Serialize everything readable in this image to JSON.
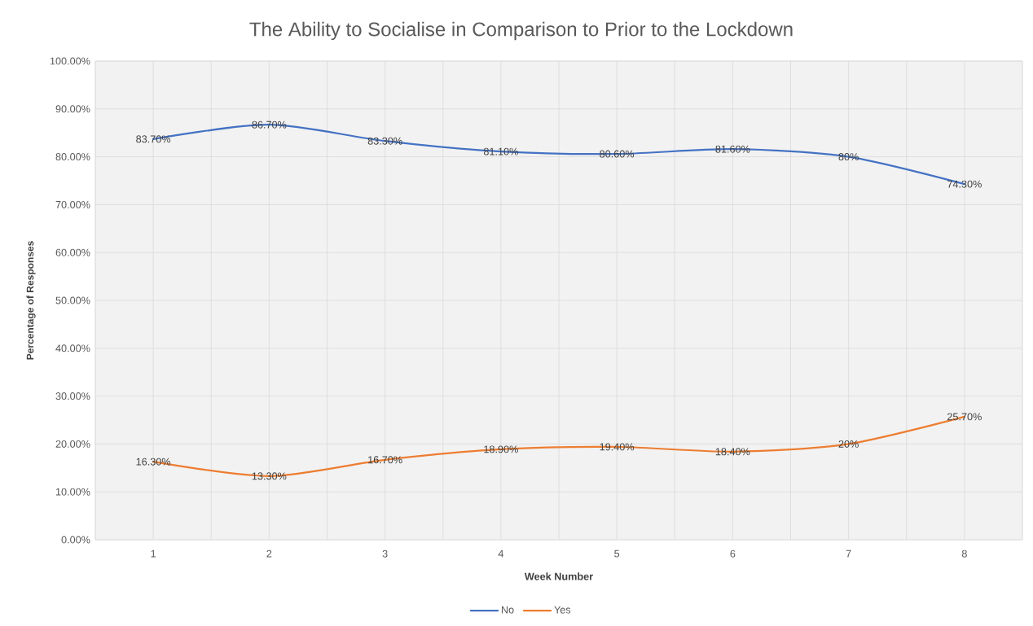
{
  "chart_data": {
    "type": "line",
    "title": "The Ability to Socialise in Comparison to Prior to the Lockdown",
    "xlabel": "Week Number",
    "ylabel": "Percentage of Responses",
    "categories": [
      "1",
      "2",
      "3",
      "4",
      "5",
      "6",
      "7",
      "8"
    ],
    "series": [
      {
        "name": "No",
        "color": "#4472c4",
        "values": [
          83.7,
          86.7,
          83.3,
          81.1,
          80.6,
          81.6,
          80,
          74.3
        ],
        "value_labels": [
          "83.70%",
          "86.70%",
          "83.30%",
          "81.10%",
          "80.60%",
          "81.60%",
          "80%",
          "74.30%"
        ]
      },
      {
        "name": "Yes",
        "color": "#ed7d31",
        "values": [
          16.3,
          13.3,
          16.7,
          18.9,
          19.4,
          18.4,
          20,
          25.7
        ],
        "value_labels": [
          "16.30%",
          "13.30%",
          "16.70%",
          "18.90%",
          "19.40%",
          "18.40%",
          "20%",
          "25.70%"
        ]
      }
    ],
    "ylim": [
      0,
      100
    ],
    "yticks": [
      {
        "value": 0,
        "label": "0.00%"
      },
      {
        "value": 10,
        "label": "10.00%"
      },
      {
        "value": 20,
        "label": "20.00%"
      },
      {
        "value": 30,
        "label": "30.00%"
      },
      {
        "value": 40,
        "label": "40.00%"
      },
      {
        "value": 50,
        "label": "50.00%"
      },
      {
        "value": 60,
        "label": "60.00%"
      },
      {
        "value": 70,
        "label": "70.00%"
      },
      {
        "value": 80,
        "label": "80.00%"
      },
      {
        "value": 90,
        "label": "90.00%"
      },
      {
        "value": 100,
        "label": "100.00%"
      }
    ],
    "grid": true,
    "legend": "bottom"
  }
}
